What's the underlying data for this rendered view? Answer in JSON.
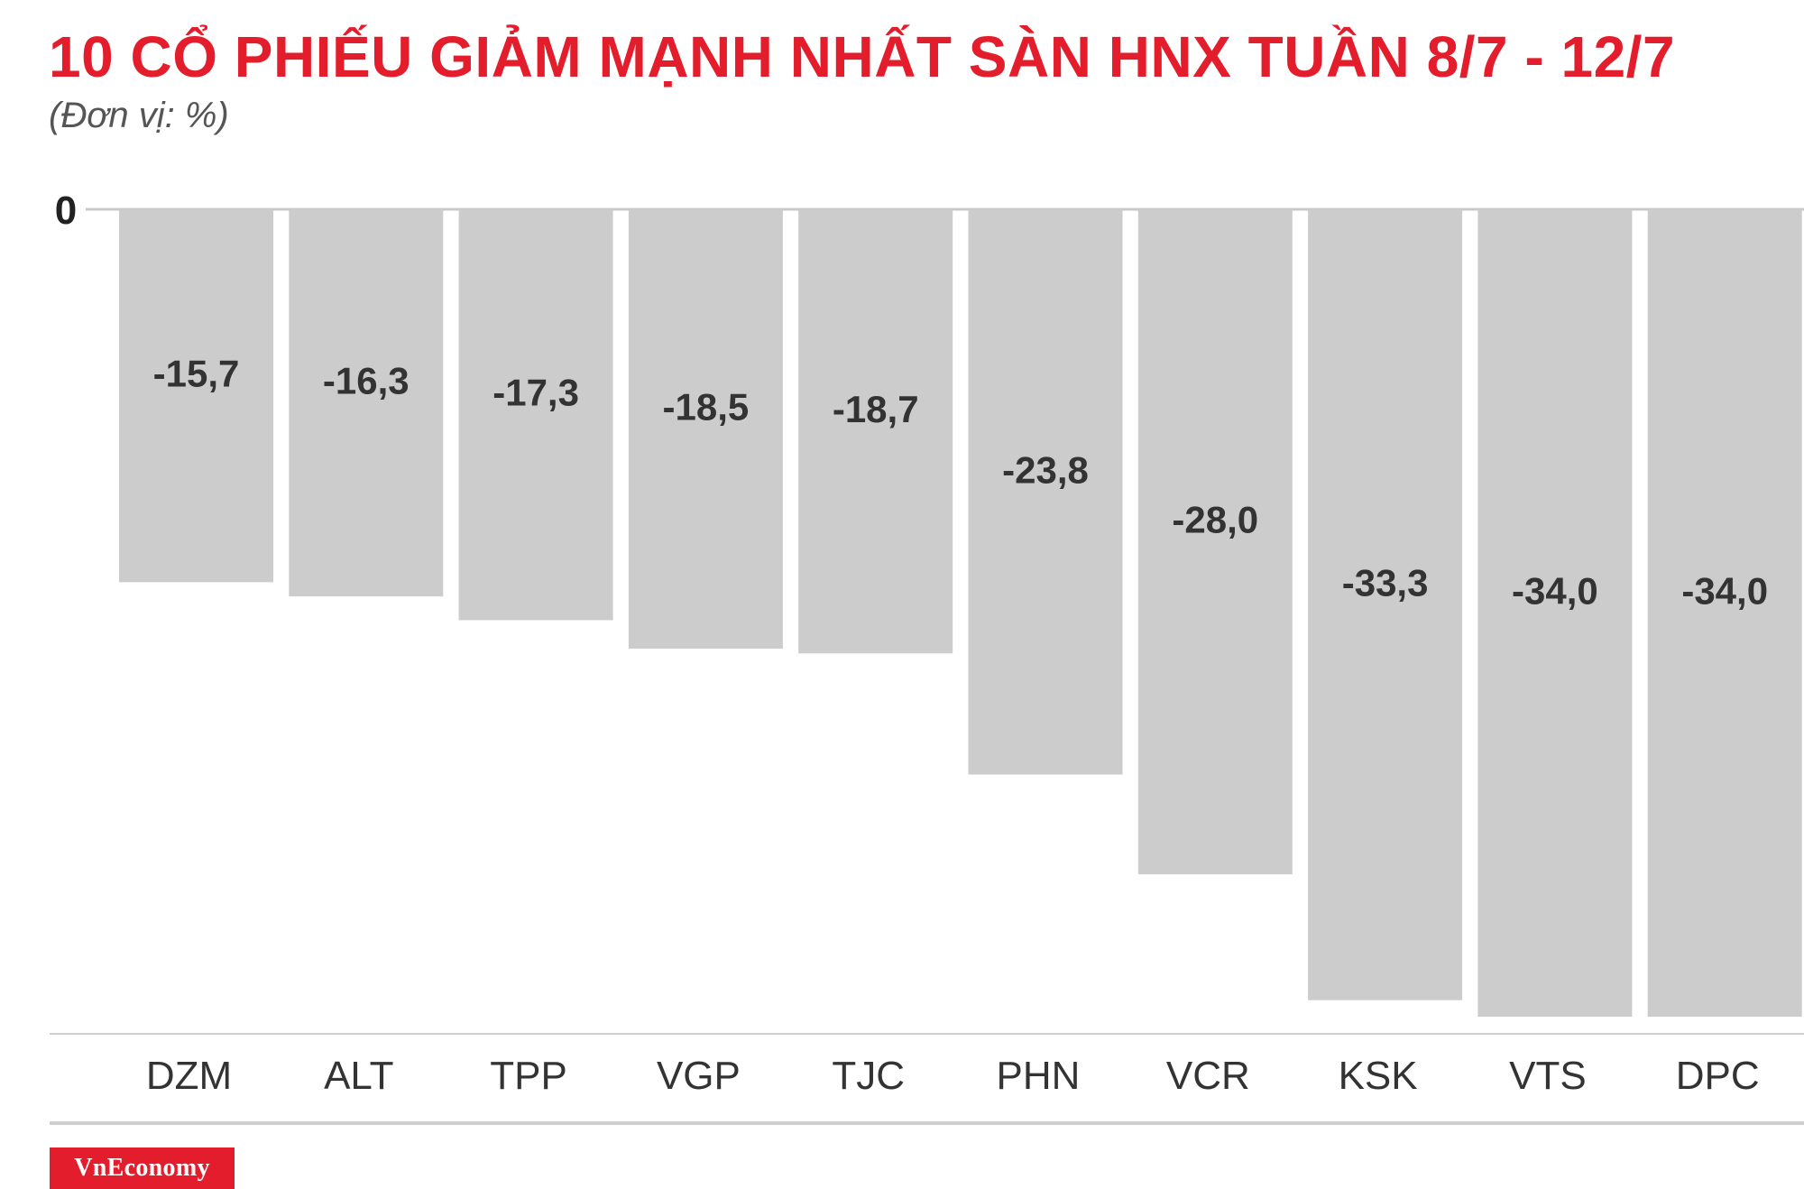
{
  "header": {
    "title": "10 CỔ PHIẾU GIẢM MẠNH NHẤT SÀN HNX TUẦN 8/7 - 12/7",
    "subtitle": "(Đơn vị: %)"
  },
  "brand": {
    "logo_text": "VnEconomy",
    "accent_color": "#e31d2b"
  },
  "chart_data": {
    "type": "bar",
    "title": "10 CỔ PHIẾU GIẢM MẠNH NHẤT SÀN HNX TUẦN 8/7 - 12/7",
    "subtitle": "(Đơn vị: %)",
    "xlabel": "",
    "ylabel": "",
    "categories": [
      "DZM",
      "ALT",
      "TPP",
      "VGP",
      "TJC",
      "PHN",
      "VCR",
      "KSK",
      "VTS",
      "DPC"
    ],
    "values": [
      -15.7,
      -16.3,
      -17.3,
      -18.5,
      -18.7,
      -23.8,
      -28.0,
      -33.3,
      -34.0,
      -34.0
    ],
    "value_labels": [
      "-15,7",
      "-16,3",
      "-17,3",
      "-18,5",
      "-18,7",
      "-23,8",
      "-28,0",
      "-33,3",
      "-34,0",
      "-34,0"
    ],
    "y_tick_labels": [
      "0"
    ],
    "ylim": [
      -34.3,
      0
    ],
    "grid": false,
    "legend": "none",
    "bar_color": "#cccccc",
    "label_color": "#333333"
  }
}
